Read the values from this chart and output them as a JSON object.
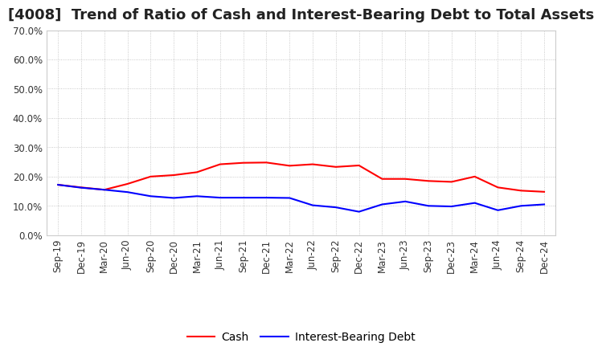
{
  "title": "[4008]  Trend of Ratio of Cash and Interest-Bearing Debt to Total Assets",
  "x_labels": [
    "Sep-19",
    "Dec-19",
    "Mar-20",
    "Jun-20",
    "Sep-20",
    "Dec-20",
    "Mar-21",
    "Jun-21",
    "Sep-21",
    "Dec-21",
    "Mar-22",
    "Jun-22",
    "Sep-22",
    "Dec-22",
    "Mar-23",
    "Jun-23",
    "Sep-23",
    "Dec-23",
    "Mar-24",
    "Jun-24",
    "Sep-24",
    "Dec-24"
  ],
  "cash": [
    0.172,
    0.163,
    0.155,
    0.175,
    0.2,
    0.205,
    0.215,
    0.242,
    0.247,
    0.248,
    0.237,
    0.242,
    0.233,
    0.238,
    0.192,
    0.192,
    0.185,
    0.182,
    0.2,
    0.163,
    0.152,
    0.148
  ],
  "debt": [
    0.172,
    0.162,
    0.155,
    0.147,
    0.133,
    0.127,
    0.133,
    0.128,
    0.128,
    0.128,
    0.127,
    0.102,
    0.095,
    0.08,
    0.105,
    0.115,
    0.1,
    0.098,
    0.11,
    0.085,
    0.1,
    0.105
  ],
  "cash_color": "#FF0000",
  "debt_color": "#0000FF",
  "background_color": "#FFFFFF",
  "plot_bg_color": "#FFFFFF",
  "grid_color": "#AAAAAA",
  "ylim": [
    0.0,
    0.7
  ],
  "yticks": [
    0.0,
    0.1,
    0.2,
    0.3,
    0.4,
    0.5,
    0.6,
    0.7
  ],
  "legend_cash": "Cash",
  "legend_debt": "Interest-Bearing Debt",
  "title_fontsize": 13,
  "tick_fontsize": 8.5,
  "legend_fontsize": 10,
  "linewidth": 1.5
}
